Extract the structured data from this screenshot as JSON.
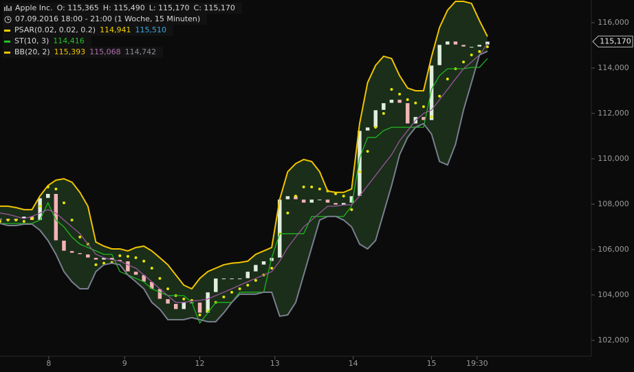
{
  "chart_data": {
    "type": "stock",
    "title": "Apple Inc.",
    "quote": [
      "O: 115,365",
      "H: 115,490",
      "L: 115,170",
      "C: 115,170"
    ],
    "subtitle": "07.09.2016 18:00 - 21:00 (1 Woche, 15 Minuten)",
    "xlim": [
      0,
      74
    ],
    "xticks": [
      {
        "value": 6.1,
        "label": "8"
      },
      {
        "value": 15.6,
        "label": "9"
      },
      {
        "value": 25,
        "label": "12"
      },
      {
        "value": 34.4,
        "label": "13"
      },
      {
        "value": 44.2,
        "label": "14"
      },
      {
        "value": 54,
        "label": "15"
      },
      {
        "value": 59.7,
        "label": "19:30"
      }
    ],
    "ylim": [
      101300,
      117000
    ],
    "yticks": [
      {
        "value": 102000,
        "label": "102,000"
      },
      {
        "value": 104000,
        "label": "104,000"
      },
      {
        "value": 106000,
        "label": "106,000"
      },
      {
        "value": 108000,
        "label": "108,000"
      },
      {
        "value": 110000,
        "label": "110,000"
      },
      {
        "value": 112000,
        "label": "112,000"
      },
      {
        "value": 114000,
        "label": "114,000"
      },
      {
        "value": 116000,
        "label": "116,000"
      }
    ],
    "last_price": {
      "value": 115170,
      "label": "115,170"
    },
    "close": {
      "up_color": "#dfeedd",
      "down_color": "#f2b4b4",
      "values": [
        107360,
        107300,
        107360,
        107460,
        107300,
        108270,
        108460,
        106400,
        105940,
        105850,
        105790,
        105640,
        105550,
        105640,
        105550,
        105490,
        105030,
        104880,
        104580,
        104270,
        103820,
        103610,
        103370,
        103670,
        103670,
        103210,
        104120,
        104730,
        104730,
        104730,
        104730,
        105030,
        105330,
        105490,
        105640,
        108210,
        108360,
        108210,
        108060,
        108210,
        108210,
        108060,
        107970,
        108060,
        108360,
        111240,
        111390,
        112150,
        112460,
        112610,
        112460,
        111550,
        111850,
        111700,
        114120,
        115030,
        115180,
        115030,
        114940,
        114940,
        115030,
        115170
      ]
    },
    "indicators": [
      {
        "name": "PSAR(0.02, 0.02, 0.2)",
        "color": "#f2d200",
        "readings": [
          {
            "label": "114,941",
            "color": "#f2d200"
          },
          {
            "label": "115,510",
            "color": "#3ea8e0"
          }
        ],
        "series": [
          {
            "style": "dots",
            "color": "#e6e600",
            "values": [
              107240,
              107300,
              107300,
              107240,
              107360,
              107910,
              108760,
              108670,
              108060,
              107300,
              106550,
              106240,
              105330,
              105400,
              105430,
              105730,
              105700,
              105640,
              105490,
              105180,
              104730,
              104270,
              103970,
              103820,
              103760,
              103120,
              103300,
              103670,
              103910,
              104120,
              104270,
              104430,
              104640,
              104880,
              105180,
              106700,
              107610,
              108360,
              108760,
              108760,
              108670,
              108580,
              108460,
              108360,
              107760,
              109430,
              110330,
              111390,
              112000,
              113060,
              112850,
              112610,
              112460,
              112300,
              111850,
              112760,
              113520,
              113970,
              114270,
              114580,
              114730,
              114940
            ]
          }
        ]
      },
      {
        "name": "ST(10, 3)",
        "color": "#22c322",
        "readings": [
          {
            "label": "114,416",
            "color": "#22c322"
          }
        ],
        "series": [
          {
            "style": "line",
            "color": "#1fb81f",
            "values": [
              107150,
              107150,
              107150,
              107150,
              107150,
              107300,
              108060,
              107300,
              107000,
              106550,
              106240,
              106090,
              105940,
              105790,
              105790,
              105030,
              104880,
              104730,
              104580,
              104270,
              104120,
              103970,
              103970,
              103970,
              103670,
              102760,
              103210,
              103670,
              103670,
              103670,
              104120,
              104120,
              104120,
              104120,
              105640,
              106700,
              106700,
              106700,
              106700,
              107460,
              107460,
              107460,
              107460,
              107460,
              107910,
              110030,
              110940,
              110940,
              111240,
              111390,
              111390,
              111390,
              111390,
              111390,
              113060,
              113670,
              113970,
              113970,
              113970,
              114030,
              114030,
              114420
            ]
          }
        ]
      },
      {
        "name": "BB(20, 2)",
        "color": "#f2c400",
        "band_fill": "#1c321c",
        "readings": [
          {
            "label": "115,393",
            "color": "#f2c400"
          },
          {
            "label": "115,068",
            "color": "#b070b0"
          },
          {
            "label": "114,742",
            "color": "#8a8a9a"
          }
        ],
        "series": [
          {
            "style": "line",
            "color": "#f2c400",
            "values": [
              107910,
              107910,
              107850,
              107760,
              107760,
              108360,
              108820,
              109060,
              109120,
              108970,
              108520,
              107910,
              106330,
              106150,
              106030,
              106030,
              105940,
              106090,
              106150,
              105940,
              105640,
              105330,
              104880,
              104430,
              104270,
              104730,
              105030,
              105180,
              105330,
              105400,
              105430,
              105490,
              105790,
              105940,
              106090,
              108210,
              109430,
              109790,
              109970,
              109880,
              109430,
              108580,
              108520,
              108520,
              108670,
              111550,
              113360,
              114120,
              114520,
              114420,
              113670,
              113120,
              113000,
              113000,
              114500,
              115790,
              116550,
              116940,
              116940,
              116850,
              116090,
              115390
            ]
          },
          {
            "style": "line",
            "color": "#9b559b",
            "values": [
              107610,
              107550,
              107460,
              107360,
              107460,
              107610,
              107760,
              107610,
              107300,
              107000,
              106700,
              106240,
              105790,
              105640,
              105550,
              105490,
              105330,
              105180,
              104880,
              104580,
              104270,
              103970,
              103670,
              103670,
              103730,
              103760,
              103820,
              103970,
              104120,
              104270,
              104430,
              104580,
              104730,
              104880,
              105030,
              105490,
              106090,
              106550,
              107000,
              107300,
              107610,
              107910,
              107910,
              107970,
              107970,
              108360,
              108820,
              109270,
              109730,
              110180,
              110790,
              111240,
              111700,
              112000,
              112150,
              112610,
              113060,
              113520,
              113970,
              114270,
              114580,
              115070
            ]
          },
          {
            "style": "line",
            "color": "#7a7f8f",
            "values": [
              107150,
              107060,
              107060,
              107120,
              107120,
              106850,
              106400,
              105790,
              105030,
              104580,
              104270,
              104270,
              105030,
              105330,
              105400,
              105330,
              104880,
              104580,
              104270,
              103670,
              103370,
              102910,
              102910,
              102910,
              103000,
              102910,
              102820,
              102820,
              103210,
              103670,
              104030,
              104030,
              104030,
              104120,
              104120,
              103060,
              103120,
              103670,
              104880,
              106090,
              107300,
              107460,
              107460,
              107300,
              107000,
              106240,
              106030,
              106400,
              107610,
              108820,
              110180,
              110940,
              111390,
              111550,
              111090,
              109880,
              109730,
              110640,
              112150,
              113360,
              114580,
              114740
            ]
          }
        ]
      }
    ]
  }
}
